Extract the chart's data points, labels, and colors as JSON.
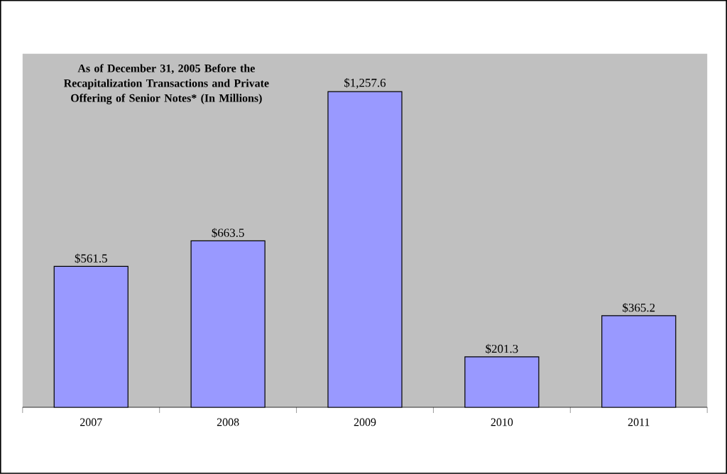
{
  "chart_data": {
    "type": "bar",
    "title": "As of December 31, 2005 Before the Recapitalization Transactions and Private Offering of Senior Notes* (In Millions)",
    "categories": [
      "2007",
      "2008",
      "2009",
      "2010",
      "2011"
    ],
    "values": [
      561.5,
      663.5,
      1257.6,
      201.3,
      365.2
    ],
    "value_labels": [
      "$561.5",
      "$663.5",
      "$1,257.6",
      "$201.3",
      "$365.2"
    ],
    "color": "#9999ff",
    "grid": false
  }
}
